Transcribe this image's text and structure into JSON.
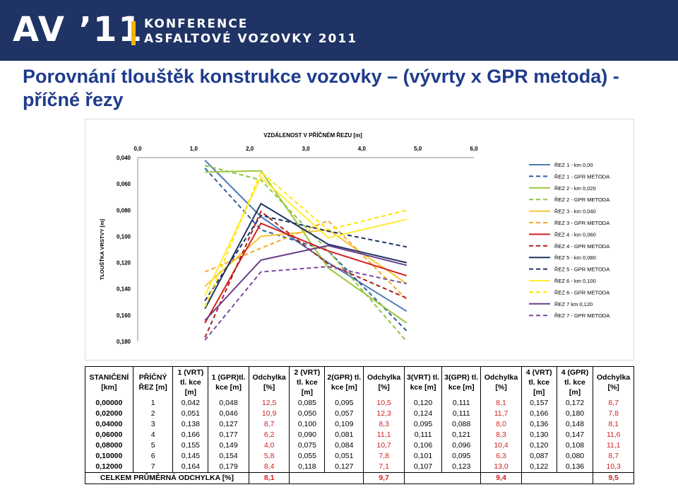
{
  "banner": {
    "logo": "AV ’11",
    "line1": "KONFERENCE",
    "line2": "ASFALTOVÉ VOZOVKY 2011"
  },
  "slide": {
    "title": "Porovnání tlouštěk konstrukce vozovky – (vývrty x GPR metoda) - příčné řezy"
  },
  "chart_data": {
    "type": "line",
    "title": "VZDÁLENOST V PŘÍČNÉM ŘEZU [m]",
    "ylabel": "TLOUŠŤKA VRSTVY [m]",
    "x_ticks": [
      "0,0",
      "1,0",
      "2,0",
      "3,0",
      "4,0",
      "5,0",
      "6,0"
    ],
    "y_ticks": [
      "0,040",
      "0,060",
      "0,080",
      "0,100",
      "0,120",
      "0,140",
      "0,160",
      "0,180"
    ],
    "xlim": [
      0,
      6
    ],
    "ylim": [
      0.04,
      0.18
    ],
    "y_inverted": true,
    "x_axis_position": "top",
    "legend_position": "right",
    "x": [
      1.2,
      2.2,
      3.4,
      4.8
    ],
    "series": [
      {
        "name": "ŘEZ 1 - km 0,00",
        "color": "#4a7ab5",
        "dash": false,
        "values": [
          0.042,
          0.085,
          0.12,
          0.157
        ]
      },
      {
        "name": "ŘEZ 1 - GPR METODA",
        "color": "#2e5d9c",
        "dash": true,
        "values": [
          0.048,
          0.095,
          0.111,
          0.172
        ]
      },
      {
        "name": "ŘEZ 2 - km 0,020",
        "color": "#9bc83f",
        "dash": false,
        "values": [
          0.051,
          0.05,
          0.124,
          0.166
        ]
      },
      {
        "name": "ŘEZ 2 - GPR METODA",
        "color": "#8cc63f",
        "dash": true,
        "values": [
          0.046,
          0.057,
          0.111,
          0.18
        ]
      },
      {
        "name": "ŘEZ 3 - km 0,040",
        "color": "#f7c431",
        "dash": false,
        "values": [
          0.138,
          0.1,
          0.095,
          0.136
        ]
      },
      {
        "name": "ŘEZ 3 - GPR METODA",
        "color": "#f5a623",
        "dash": true,
        "values": [
          0.127,
          0.109,
          0.088,
          0.148
        ]
      },
      {
        "name": "ŘEZ 4 - km 0,060",
        "color": "#d42020",
        "dash": false,
        "values": [
          0.166,
          0.09,
          0.111,
          0.13
        ]
      },
      {
        "name": "ŘEZ 4 - GPR METODA",
        "color": "#b01c1c",
        "dash": true,
        "values": [
          0.177,
          0.081,
          0.121,
          0.147
        ]
      },
      {
        "name": "ŘEZ 5 - km 0,080",
        "color": "#1f3364",
        "dash": false,
        "values": [
          0.155,
          0.075,
          0.106,
          0.12
        ]
      },
      {
        "name": "ŘEZ 5 - GPR METODA",
        "color": "#1f3364",
        "dash": true,
        "values": [
          0.149,
          0.084,
          0.096,
          0.108
        ]
      },
      {
        "name": "ŘEZ 6 - km 0,100",
        "color": "#ffee33",
        "dash": false,
        "values": [
          0.145,
          0.055,
          0.101,
          0.087
        ]
      },
      {
        "name": "ŘEZ 6 - GPR METODA",
        "color": "#ffe600",
        "dash": true,
        "values": [
          0.154,
          0.051,
          0.095,
          0.08
        ]
      },
      {
        "name": "ŘEZ 7 km 0,120",
        "color": "#6a3d8a",
        "dash": false,
        "values": [
          0.164,
          0.118,
          0.107,
          0.122
        ]
      },
      {
        "name": "ŘEZ 7 - GPR METODA",
        "color": "#7a4aa0",
        "dash": true,
        "values": [
          0.179,
          0.127,
          0.123,
          0.136
        ]
      }
    ]
  },
  "table": {
    "headers": [
      "STANIČENÍ [km]",
      "PŘÍČNÝ ŘEZ [m]",
      "1 (VRT) tl. kce [m]",
      "1 (GPR)tl. kce [m]",
      "Odchylka [%]",
      "2 (VRT) tl. kce [m]",
      "2(GPR) tl. kce [m]",
      "Odchylka [%]",
      "3(VRT) tl. kce [m]",
      "3(GPR) tl. kce [m]",
      "Odchylka [%]",
      "4 (VRT) tl. kce [m]",
      "4 (GPR) tl. kce [m]",
      "Odchylka [%]"
    ],
    "rows": [
      [
        "0,00000",
        "1",
        "0,042",
        "0,048",
        "12,5",
        "0,085",
        "0,095",
        "10,5",
        "0,120",
        "0,111",
        "8,1",
        "0,157",
        "0,172",
        "8,7"
      ],
      [
        "0,02000",
        "2",
        "0,051",
        "0,046",
        "10,9",
        "0,050",
        "0,057",
        "12,3",
        "0,124",
        "0,111",
        "11,7",
        "0,166",
        "0,180",
        "7,8"
      ],
      [
        "0,04000",
        "3",
        "0,138",
        "0,127",
        "8,7",
        "0,100",
        "0,109",
        "8,3",
        "0,095",
        "0,088",
        "8,0",
        "0,136",
        "0,148",
        "8,1"
      ],
      [
        "0,06000",
        "4",
        "0,166",
        "0,177",
        "6,2",
        "0,090",
        "0,081",
        "11,1",
        "0,111",
        "0,121",
        "8,3",
        "0,130",
        "0,147",
        "11,6"
      ],
      [
        "0,08000",
        "5",
        "0,155",
        "0,149",
        "4,0",
        "0,075",
        "0,084",
        "10,7",
        "0,106",
        "0,096",
        "10,4",
        "0,120",
        "0,108",
        "11,1"
      ],
      [
        "0,10000",
        "6",
        "0,145",
        "0,154",
        "5,8",
        "0,055",
        "0,051",
        "7,8",
        "0,101",
        "0,095",
        "6,3",
        "0,087",
        "0,080",
        "8,7"
      ],
      [
        "0,12000",
        "7",
        "0,164",
        "0,179",
        "8,4",
        "0,118",
        "0,127",
        "7,1",
        "0,107",
        "0,123",
        "13,0",
        "0,122",
        "0,136",
        "10,3"
      ]
    ],
    "summary_label": "CELKEM PRŮMĚRNÁ ODCHYLKA [%]",
    "summary_values": [
      "8,1",
      "9,7",
      "9,4",
      "9,5"
    ]
  }
}
